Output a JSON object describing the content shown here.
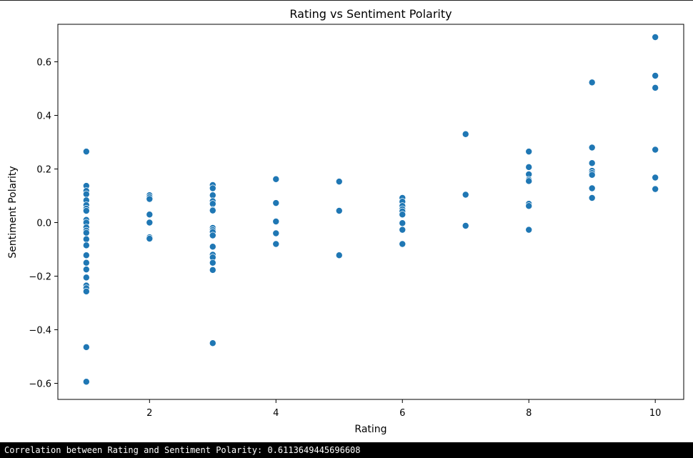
{
  "chart_data": {
    "type": "scatter",
    "title": "Rating vs Sentiment Polarity",
    "xlabel": "Rating",
    "ylabel": "Sentiment Polarity",
    "xlim": [
      0.55,
      10.45
    ],
    "ylim": [
      -0.66,
      0.74
    ],
    "xticks": [
      2,
      4,
      6,
      8,
      10
    ],
    "xtick_labels": [
      "2",
      "4",
      "6",
      "8",
      "10"
    ],
    "yticks": [
      -0.6,
      -0.4,
      -0.2,
      0.0,
      0.2,
      0.4,
      0.6
    ],
    "ytick_labels": [
      "−0.6",
      "−0.4",
      "−0.2",
      "0.0",
      "0.2",
      "0.4",
      "0.6"
    ],
    "grid": false,
    "marker_color": "#1f77b4",
    "points": [
      [
        1,
        0.265
      ],
      [
        1,
        0.137
      ],
      [
        1,
        0.118
      ],
      [
        1,
        0.106
      ],
      [
        1,
        0.083
      ],
      [
        1,
        0.065
      ],
      [
        1,
        0.052
      ],
      [
        1,
        0.044
      ],
      [
        1,
        0.01
      ],
      [
        1,
        0.0
      ],
      [
        1,
        -0.018
      ],
      [
        1,
        -0.03
      ],
      [
        1,
        -0.038
      ],
      [
        1,
        -0.062
      ],
      [
        1,
        -0.085
      ],
      [
        1,
        -0.122
      ],
      [
        1,
        -0.15
      ],
      [
        1,
        -0.175
      ],
      [
        1,
        -0.205
      ],
      [
        1,
        -0.235
      ],
      [
        1,
        -0.245
      ],
      [
        1,
        -0.257
      ],
      [
        1,
        -0.465
      ],
      [
        1,
        -0.594
      ],
      [
        2,
        0.102
      ],
      [
        2,
        0.095
      ],
      [
        2,
        0.088
      ],
      [
        2,
        0.03
      ],
      [
        2,
        0.0
      ],
      [
        2,
        -0.055
      ],
      [
        2,
        -0.06
      ],
      [
        3,
        0.14
      ],
      [
        3,
        0.128
      ],
      [
        3,
        0.102
      ],
      [
        3,
        0.08
      ],
      [
        3,
        0.07
      ],
      [
        3,
        0.048
      ],
      [
        3,
        0.045
      ],
      [
        3,
        -0.02
      ],
      [
        3,
        -0.028
      ],
      [
        3,
        -0.035
      ],
      [
        3,
        -0.048
      ],
      [
        3,
        -0.09
      ],
      [
        3,
        -0.12
      ],
      [
        3,
        -0.13
      ],
      [
        3,
        -0.15
      ],
      [
        3,
        -0.177
      ],
      [
        3,
        -0.45
      ],
      [
        4,
        0.162
      ],
      [
        4,
        0.073
      ],
      [
        4,
        0.004
      ],
      [
        4,
        -0.04
      ],
      [
        4,
        -0.08
      ],
      [
        5,
        0.153
      ],
      [
        5,
        0.044
      ],
      [
        5,
        -0.122
      ],
      [
        6,
        0.092
      ],
      [
        6,
        0.078
      ],
      [
        6,
        0.062
      ],
      [
        6,
        0.05
      ],
      [
        6,
        0.042
      ],
      [
        6,
        0.03
      ],
      [
        6,
        -0.002
      ],
      [
        6,
        -0.027
      ],
      [
        6,
        -0.08
      ],
      [
        7,
        0.33
      ],
      [
        7,
        0.104
      ],
      [
        7,
        -0.012
      ],
      [
        8,
        0.265
      ],
      [
        8,
        0.207
      ],
      [
        8,
        0.18
      ],
      [
        8,
        0.16
      ],
      [
        8,
        0.155
      ],
      [
        8,
        0.07
      ],
      [
        8,
        0.062
      ],
      [
        8,
        -0.027
      ],
      [
        9,
        0.523
      ],
      [
        9,
        0.28
      ],
      [
        9,
        0.222
      ],
      [
        9,
        0.193
      ],
      [
        9,
        0.185
      ],
      [
        9,
        0.178
      ],
      [
        9,
        0.128
      ],
      [
        9,
        0.092
      ],
      [
        10,
        0.692
      ],
      [
        10,
        0.548
      ],
      [
        10,
        0.503
      ],
      [
        10,
        0.272
      ],
      [
        10,
        0.168
      ],
      [
        10,
        0.125
      ]
    ]
  },
  "console": {
    "output_text": "Correlation between Rating and Sentiment Polarity: 0.6113649445696608"
  }
}
